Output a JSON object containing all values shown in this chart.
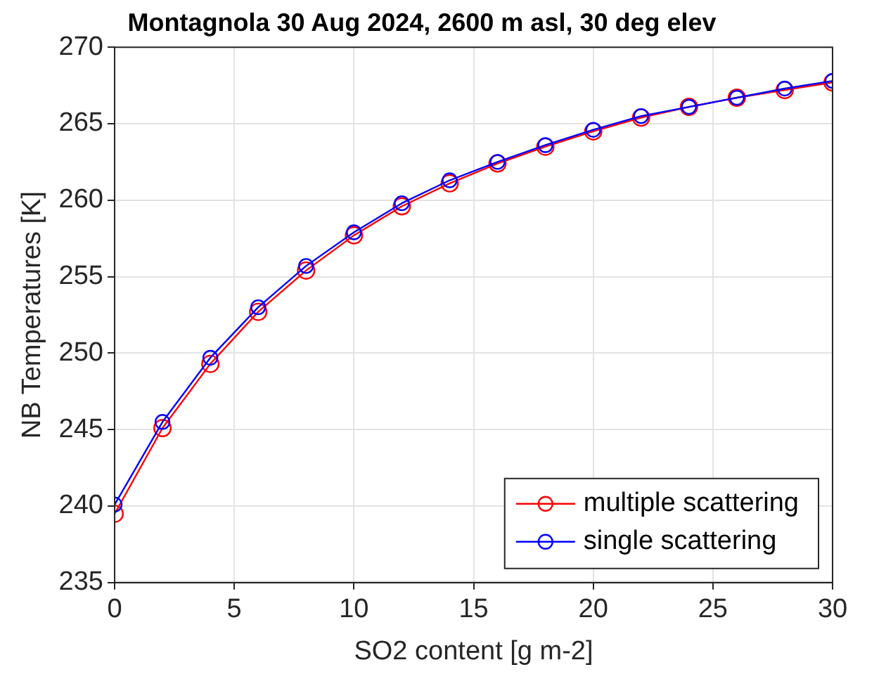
{
  "chart_data": {
    "type": "line",
    "title": "Montagnola 30 Aug 2024, 2600 m asl, 30 deg elev",
    "xlabel": "SO2 content [g m-2]",
    "ylabel": "NB Temperatures [K]",
    "x": [
      0,
      2,
      4,
      6,
      8,
      10,
      12,
      14,
      16,
      18,
      20,
      22,
      24,
      26,
      28,
      30
    ],
    "series": [
      {
        "name": "multiple scattering",
        "color": "#ff0000",
        "values": [
          239.5,
          245.1,
          249.3,
          252.7,
          255.4,
          257.7,
          259.6,
          261.1,
          262.4,
          263.5,
          264.5,
          265.4,
          266.1,
          266.7,
          267.2,
          267.7
        ]
      },
      {
        "name": "single scattering",
        "color": "#0000ff",
        "values": [
          240.1,
          245.5,
          249.7,
          253.0,
          255.7,
          257.9,
          259.8,
          261.3,
          262.5,
          263.6,
          264.6,
          265.5,
          266.1,
          266.7,
          267.3,
          267.8
        ]
      }
    ],
    "xlim": [
      0,
      30
    ],
    "xticks": [
      0,
      5,
      10,
      15,
      20,
      25,
      30
    ],
    "ylim": [
      235,
      270
    ],
    "yticks": [
      235,
      240,
      245,
      250,
      255,
      260,
      265,
      270
    ],
    "grid": true,
    "legend": "bottom right",
    "marker": "circle",
    "line_style": "solid"
  }
}
